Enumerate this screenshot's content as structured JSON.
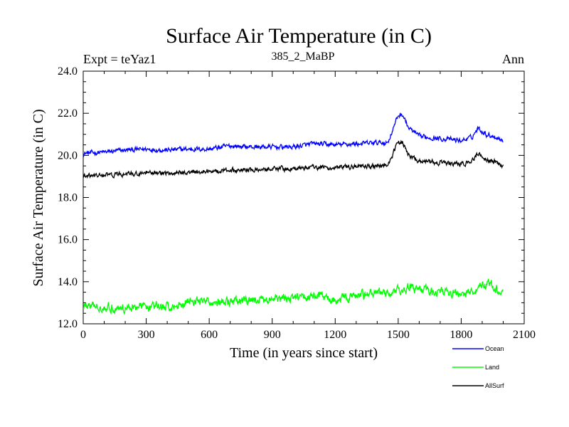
{
  "chart_data": {
    "type": "line",
    "title": "Surface Air Temperature (in C)",
    "subtitle_left": "Expt = teYaz1",
    "subtitle_center": "385_2_MaBP",
    "subtitle_right": "Ann",
    "xlabel": "Time (in years since start)",
    "ylabel": "Surface Air Temperature (in C)",
    "xlim": [
      0,
      2100
    ],
    "ylim": [
      12.0,
      24.0
    ],
    "x_ticks": [
      "0",
      "300",
      "600",
      "900",
      "1200",
      "1500",
      "1800",
      "2100"
    ],
    "y_ticks": [
      "12.0",
      "14.0",
      "16.0",
      "18.0",
      "20.0",
      "22.0",
      "24.0"
    ],
    "series": [
      {
        "name": "Ocean",
        "color": "#0000ff",
        "x": [
          0,
          100,
          200,
          300,
          400,
          500,
          600,
          700,
          800,
          900,
          1000,
          1100,
          1200,
          1300,
          1400,
          1450,
          1500,
          1520,
          1550,
          1600,
          1700,
          1800,
          1850,
          1880,
          1920,
          1960,
          2000
        ],
        "values": [
          20.1,
          20.15,
          20.25,
          20.3,
          20.25,
          20.3,
          20.3,
          20.45,
          20.4,
          20.4,
          20.4,
          20.55,
          20.5,
          20.55,
          20.6,
          20.6,
          21.9,
          21.95,
          21.3,
          20.9,
          20.8,
          20.7,
          20.85,
          21.3,
          21.0,
          20.9,
          20.7
        ]
      },
      {
        "name": "Land",
        "color": "#00ff00",
        "x": [
          0,
          100,
          200,
          300,
          400,
          450,
          500,
          600,
          700,
          800,
          900,
          1000,
          1100,
          1200,
          1300,
          1400,
          1450,
          1500,
          1550,
          1600,
          1700,
          1800,
          1850,
          1880,
          1920,
          1960,
          2000
        ],
        "values": [
          12.85,
          12.8,
          12.75,
          12.85,
          12.8,
          12.85,
          13.1,
          13.05,
          13.0,
          13.1,
          13.15,
          13.2,
          13.35,
          13.15,
          13.3,
          13.5,
          13.45,
          13.55,
          13.75,
          13.6,
          13.55,
          13.4,
          13.5,
          13.7,
          13.95,
          13.7,
          13.45
        ]
      },
      {
        "name": "AllSurf",
        "color": "#000000",
        "x": [
          0,
          100,
          200,
          300,
          400,
          500,
          600,
          700,
          800,
          900,
          1000,
          1100,
          1200,
          1300,
          1400,
          1450,
          1500,
          1520,
          1550,
          1600,
          1700,
          1800,
          1850,
          1880,
          1920,
          1960,
          2000
        ],
        "values": [
          19.0,
          19.05,
          19.1,
          19.15,
          19.15,
          19.2,
          19.25,
          19.3,
          19.3,
          19.4,
          19.35,
          19.45,
          19.4,
          19.45,
          19.5,
          19.55,
          20.6,
          20.65,
          20.0,
          19.75,
          19.65,
          19.55,
          19.7,
          20.1,
          19.8,
          19.7,
          19.5
        ]
      }
    ],
    "legend_position": "bottom-right"
  }
}
